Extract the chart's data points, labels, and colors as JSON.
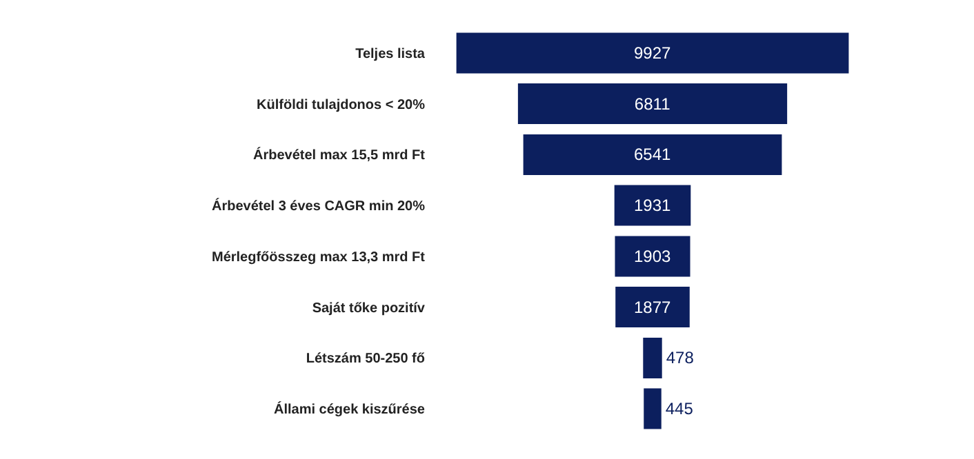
{
  "chart_data": {
    "type": "other",
    "categories": [
      "Teljes lista",
      "Külföldi tulajdonos < 20%",
      "Árbevétel max 15,5 mrd Ft",
      "Árbevétel 3 éves CAGR min 20%",
      "Mérlegfőösszeg max 13,3 mrd Ft",
      "Saját tőke pozitív",
      "Létszám 50-250 fő",
      "Állami cégek kiszűrése"
    ],
    "values": [
      9927,
      6811,
      6541,
      1931,
      1903,
      1877,
      478,
      445
    ],
    "color": "#0c1f5e",
    "data_labels": true
  }
}
